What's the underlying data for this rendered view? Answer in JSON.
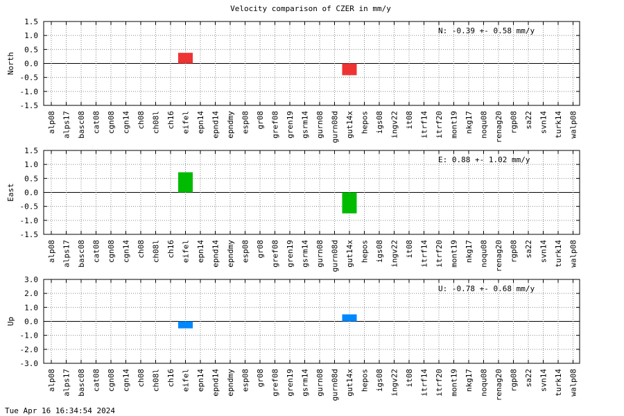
{
  "title": "Velocity comparison of CZER in mm/y",
  "timestamp": "Tue Apr 16 16:34:54 2024",
  "chart_data": [
    {
      "type": "bar",
      "ylabel": "North",
      "ylim": [
        -1.5,
        1.5
      ],
      "yticks": [
        "1.5",
        "1.0",
        "0.5",
        "0.0",
        "-0.5",
        "-1.0",
        "-1.5"
      ],
      "ytick_values": [
        1.5,
        1.0,
        0.5,
        0.0,
        -0.5,
        -1.0,
        -1.5
      ],
      "annotation": "N:  -0.39 +-  0.58 mm/y",
      "color": "#ee3333",
      "grid": true,
      "categories": [
        "alp08",
        "alps17",
        "basc08",
        "cat08",
        "cgn08",
        "cgn14",
        "ch08",
        "ch08l",
        "ch16",
        "eifel",
        "epn14",
        "epnd14",
        "epndmy",
        "esp08",
        "gr08",
        "gref08",
        "gren19",
        "gsrm14",
        "gurn08",
        "gurn08d",
        "gut14x",
        "hepos",
        "igs08",
        "ingv22",
        "it08",
        "itrf14",
        "itrf20",
        "mont19",
        "nkg17",
        "noqu08",
        "renag20",
        "rgp08",
        "sa22",
        "svn14",
        "turk14",
        "walp08"
      ],
      "values": [
        null,
        null,
        null,
        null,
        null,
        null,
        null,
        null,
        null,
        0.38,
        null,
        null,
        null,
        null,
        null,
        null,
        null,
        null,
        null,
        null,
        -0.42,
        null,
        null,
        null,
        null,
        null,
        null,
        null,
        null,
        null,
        null,
        null,
        null,
        null,
        null,
        null
      ]
    },
    {
      "type": "bar",
      "ylabel": "East",
      "ylim": [
        -1.5,
        1.5
      ],
      "yticks": [
        "1.5",
        "1.0",
        "0.5",
        "0.0",
        "-0.5",
        "-1.0",
        "-1.5"
      ],
      "ytick_values": [
        1.5,
        1.0,
        0.5,
        0.0,
        -0.5,
        -1.0,
        -1.5
      ],
      "annotation": "E:   0.88 +-  1.02 mm/y",
      "color": "#00bb00",
      "grid": true,
      "categories": [
        "alp08",
        "alps17",
        "basc08",
        "cat08",
        "cgn08",
        "cgn14",
        "ch08",
        "ch08l",
        "ch16",
        "eifel",
        "epn14",
        "epnd14",
        "epndmy",
        "esp08",
        "gr08",
        "gref08",
        "gren19",
        "gsrm14",
        "gurn08",
        "gurn08d",
        "gut14x",
        "hepos",
        "igs08",
        "ingv22",
        "it08",
        "itrf14",
        "itrf20",
        "mont19",
        "nkg17",
        "noqu08",
        "renag20",
        "rgp08",
        "sa22",
        "svn14",
        "turk14",
        "walp08"
      ],
      "values": [
        null,
        null,
        null,
        null,
        null,
        null,
        null,
        null,
        null,
        0.72,
        null,
        null,
        null,
        null,
        null,
        null,
        null,
        null,
        null,
        null,
        -0.75,
        null,
        null,
        null,
        null,
        null,
        null,
        null,
        null,
        null,
        null,
        null,
        null,
        null,
        null,
        null
      ]
    },
    {
      "type": "bar",
      "ylabel": "Up",
      "ylim": [
        -3.0,
        3.0
      ],
      "yticks": [
        "3.0",
        "2.0",
        "1.0",
        "0.0",
        "-1.0",
        "-2.0",
        "-3.0"
      ],
      "ytick_values": [
        3.0,
        2.0,
        1.0,
        0.0,
        -1.0,
        -2.0,
        -3.0
      ],
      "annotation": "U:  -0.78 +-  0.68 mm/y",
      "color": "#0088ff",
      "grid": true,
      "categories": [
        "alp08",
        "alps17",
        "basc08",
        "cat08",
        "cgn08",
        "cgn14",
        "ch08",
        "ch08l",
        "ch16",
        "eifel",
        "epn14",
        "epnd14",
        "epndmy",
        "esp08",
        "gr08",
        "gref08",
        "gren19",
        "gsrm14",
        "gurn08",
        "gurn08d",
        "gut14x",
        "hepos",
        "igs08",
        "ingv22",
        "it08",
        "itrf14",
        "itrf20",
        "mont19",
        "nkg17",
        "noqu08",
        "renag20",
        "rgp08",
        "sa22",
        "svn14",
        "turk14",
        "walp08"
      ],
      "values": [
        null,
        null,
        null,
        null,
        null,
        null,
        null,
        null,
        null,
        -0.5,
        null,
        null,
        null,
        null,
        null,
        null,
        null,
        null,
        null,
        null,
        0.5,
        null,
        null,
        null,
        null,
        null,
        null,
        null,
        null,
        null,
        null,
        null,
        null,
        null,
        null,
        null
      ]
    }
  ]
}
